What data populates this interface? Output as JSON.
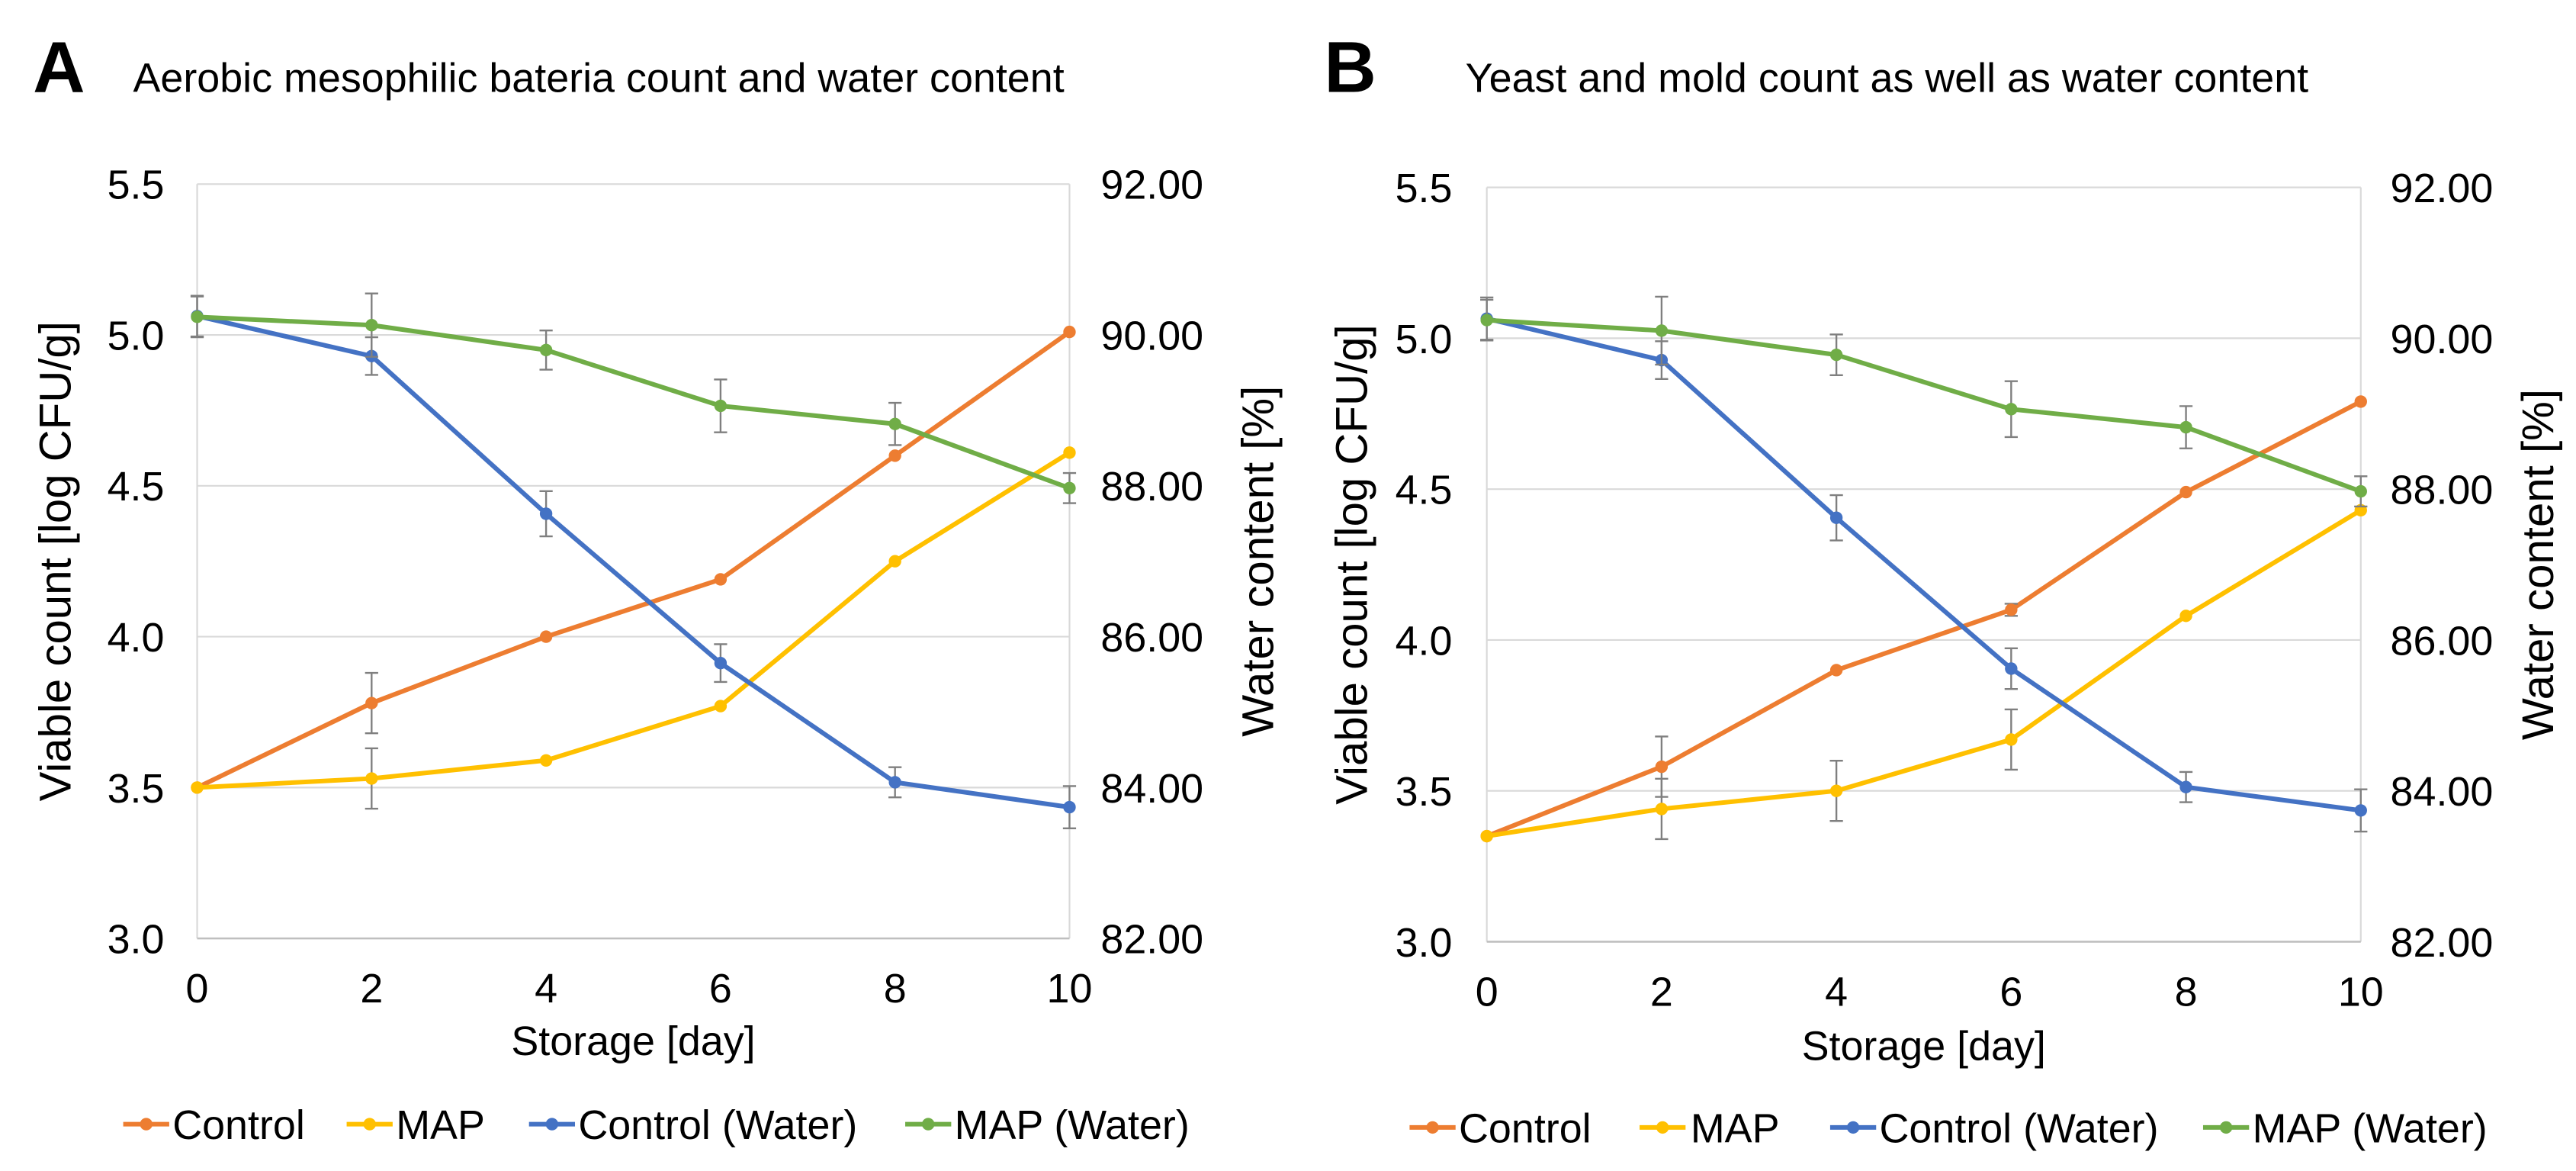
{
  "chart_data": [
    {
      "type": "line",
      "panel_label": "A",
      "title": "Aerobic mesophilic bateria count and water content",
      "xlabel": "Storage [day]",
      "ylabel": "Viable count [log CFU/g]",
      "y2label": "Water content [%]",
      "x": [
        0,
        2,
        4,
        6,
        8,
        10
      ],
      "xlim": [
        0,
        10
      ],
      "x_tick_labels": [
        "0",
        "2",
        "4",
        "6",
        "8",
        "10"
      ],
      "ylim": [
        3.0,
        5.5
      ],
      "y_tick_labels": [
        "3.0",
        "3.5",
        "4.0",
        "4.5",
        "5.0",
        "5.5"
      ],
      "y2lim": [
        82,
        92
      ],
      "y2_tick_labels": [
        "82.00",
        "84.00",
        "86.00",
        "88.00",
        "90.00",
        "92.00"
      ],
      "grid": true,
      "legend_position": "bottom",
      "series": [
        {
          "name": "Control",
          "color": "#ED7D31",
          "values": [
            3.5,
            3.78,
            4.0,
            4.19,
            4.6,
            5.01
          ],
          "errors": [
            0,
            0.1,
            0,
            0,
            0,
            0
          ]
        },
        {
          "name": "MAP",
          "color": "#FFC000",
          "values": [
            3.5,
            3.53,
            3.59,
            3.77,
            4.25,
            4.61
          ],
          "errors": [
            0,
            0.1,
            0,
            0,
            0,
            0
          ]
        }
      ],
      "series_y2": [
        {
          "name": "Control (Water)",
          "color": "#4472C4",
          "values": [
            90.25,
            89.72,
            87.63,
            85.65,
            84.07,
            83.74
          ],
          "errors": [
            0.27,
            0.25,
            0.3,
            0.25,
            0.2,
            0.28
          ]
        },
        {
          "name": "MAP (Water)",
          "color": "#70AD47",
          "values": [
            90.24,
            90.13,
            89.8,
            89.06,
            88.82,
            87.97
          ],
          "errors": [
            0.27,
            0.42,
            0.26,
            0.35,
            0.28,
            0.2
          ]
        }
      ]
    },
    {
      "type": "line",
      "panel_label": "B",
      "title": "Yeast and mold count as well as water content",
      "xlabel": "Storage [day]",
      "ylabel": "Viable count [log CFU/g]",
      "y2label": "Water content [%]",
      "x": [
        0,
        2,
        4,
        6,
        8,
        10
      ],
      "xlim": [
        0,
        10
      ],
      "x_tick_labels": [
        "0",
        "2",
        "4",
        "6",
        "8",
        "10"
      ],
      "ylim": [
        3.0,
        5.5
      ],
      "y_tick_labels": [
        "3.0",
        "3.5",
        "4.0",
        "4.5",
        "5.0",
        "5.5"
      ],
      "y2lim": [
        82,
        92
      ],
      "y2_tick_labels": [
        "82.00",
        "84.00",
        "86.00",
        "88.00",
        "90.00",
        "92.00"
      ],
      "grid": true,
      "legend_position": "bottom",
      "series": [
        {
          "name": "Control",
          "color": "#ED7D31",
          "values": [
            3.35,
            3.58,
            3.9,
            4.1,
            4.49,
            4.79
          ],
          "errors": [
            0,
            0.1,
            0,
            0.02,
            0,
            0
          ]
        },
        {
          "name": "MAP",
          "color": "#FFC000",
          "values": [
            3.35,
            3.44,
            3.5,
            3.67,
            4.08,
            4.43
          ],
          "errors": [
            0,
            0.1,
            0.1,
            0.1,
            0,
            0
          ]
        }
      ],
      "series_y2": [
        {
          "name": "Control (Water)",
          "color": "#4472C4",
          "values": [
            90.26,
            89.71,
            87.62,
            85.62,
            84.05,
            83.74
          ],
          "errors": [
            0.28,
            0.25,
            0.3,
            0.27,
            0.2,
            0.28
          ]
        },
        {
          "name": "MAP (Water)",
          "color": "#70AD47",
          "values": [
            90.24,
            90.1,
            89.78,
            89.06,
            88.82,
            87.97
          ],
          "errors": [
            0.27,
            0.45,
            0.27,
            0.37,
            0.28,
            0.2
          ]
        }
      ]
    }
  ]
}
